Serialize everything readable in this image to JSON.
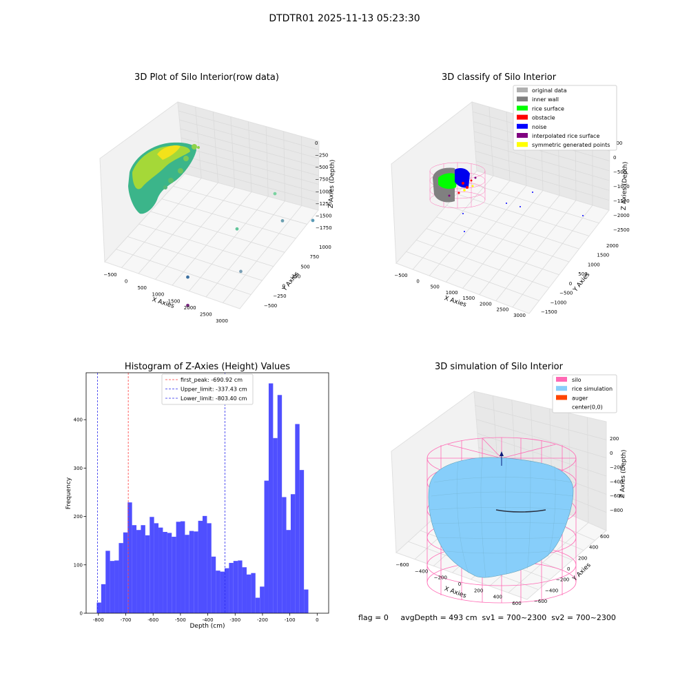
{
  "figure": {
    "suptitle": "DTDTR01 2025-11-13 05:23:30",
    "status_text": "flag = 0     avgDepth = 493 cm  sv1 = 700~2300  sv2 = 700~2300"
  },
  "colors": {
    "bar": "#4f4fff",
    "first_peak_line": "#ff3a3a",
    "limit_line": "#2a2aee",
    "silo": "#ff69b4",
    "rice_simulation": "#87cefa",
    "auger": "#ff4500",
    "original_data": "#b0b0b0",
    "inner_wall": "#808080",
    "rice_surface": "#00ff00",
    "obstacle": "#ff0000",
    "noise": "#0000ff",
    "interpolated_rice_surface": "#800080",
    "symmetric_generated_points": "#ffff00"
  },
  "chart_data": [
    {
      "type": "scatter",
      "title": "3D Plot of Silo Interior(row data)",
      "xlabel": "X Axies",
      "ylabel": "Y Axies",
      "zlabel": "Z Axies (Depth)",
      "xticks": [
        "−500",
        "0",
        "500",
        "1000",
        "1500",
        "2000",
        "2500",
        "3000"
      ],
      "yticks": [
        "−500",
        "−250",
        "0",
        "250",
        "500",
        "750",
        "1000"
      ],
      "zticks": [
        "0",
        "−250",
        "−500",
        "−750",
        "−1000",
        "−1250",
        "−1500",
        "−1750"
      ],
      "outliers": [
        {
          "x": 2200,
          "y": 600,
          "z": -600,
          "color": "#7ad3a0"
        },
        {
          "x": 1500,
          "y": 300,
          "z": -1150,
          "color": "#62c59a"
        },
        {
          "x": 2300,
          "y": 700,
          "z": -1200,
          "color": "#6b9fb0"
        },
        {
          "x": 2900,
          "y": 900,
          "z": -1250,
          "color": "#5a9ab5"
        },
        {
          "x": 800,
          "y": -300,
          "z": -1650,
          "color": "#3a6fa0"
        },
        {
          "x": 1800,
          "y": 100,
          "z": -1700,
          "color": "#7a9fb5"
        },
        {
          "x": 1000,
          "y": -500,
          "z": -1950,
          "color": "#7a2a80"
        }
      ]
    },
    {
      "type": "scatter",
      "title": "3D classify of Silo Interior",
      "xlabel": "X Axies",
      "ylabel": "Y Axies",
      "zlabel": "Z Axies (Depth)",
      "xticks": [
        "−500",
        "0",
        "500",
        "1000",
        "1500",
        "2000",
        "2500",
        "3000"
      ],
      "yticks": [
        "−1500",
        "−1000",
        "−500",
        "0",
        "500",
        "1000",
        "1500",
        "2000"
      ],
      "zticks": [
        "500",
        "0",
        "−500",
        "−1000",
        "−1500",
        "−2000",
        "−2500"
      ],
      "legend": [
        {
          "label": "original data",
          "color": "#b0b0b0"
        },
        {
          "label": "inner wall",
          "color": "#808080"
        },
        {
          "label": "rice surface",
          "color": "#00ff00"
        },
        {
          "label": "obstacle",
          "color": "#ff0000"
        },
        {
          "label": "noise",
          "color": "#0000ff"
        },
        {
          "label": "interpolated rice surface",
          "color": "#800080"
        },
        {
          "label": "symmetric generated points",
          "color": "#ffff00"
        }
      ],
      "legend_position": "top-right"
    },
    {
      "type": "bar",
      "title": "Histogram of Z-Axies (Height) Values",
      "xlabel": "Depth (cm)",
      "ylabel": "Frequency",
      "xlim": [
        -845,
        42
      ],
      "ylim": [
        0,
        497
      ],
      "xticks": [
        -800,
        -700,
        -600,
        -500,
        -400,
        -300,
        -200,
        -100,
        0
      ],
      "yticks": [
        0,
        100,
        200,
        300,
        400
      ],
      "bin_start": -806,
      "bin_width": 16.12,
      "values": [
        22,
        60,
        129,
        108,
        109,
        145,
        167,
        229,
        182,
        172,
        182,
        161,
        199,
        186,
        177,
        168,
        166,
        158,
        189,
        190,
        162,
        170,
        169,
        191,
        201,
        186,
        117,
        88,
        86,
        93,
        104,
        108,
        109,
        95,
        80,
        83,
        32,
        55,
        274,
        475,
        362,
        451,
        240,
        172,
        246,
        391,
        296,
        49
      ],
      "vlines": [
        {
          "name": "first_peak",
          "x": -690.92,
          "label": "first_peak: -690.92 cm",
          "color": "#ff3a3a"
        },
        {
          "name": "upper_limit",
          "x": -337.43,
          "label": "Upper_limit: -337.43 cm",
          "color": "#2a2aee"
        },
        {
          "name": "lower_limit",
          "x": -803.4,
          "label": "Lower_limit: -803.40 cm",
          "color": "#2a2aee"
        }
      ],
      "legend_position": "top-center"
    },
    {
      "type": "area",
      "title": "3D simulation of Silo Interior",
      "xlabel": "X Axies",
      "ylabel": "Y Axies",
      "zlabel": "Z Axies (Depth)",
      "xticks": [
        "−600",
        "−400",
        "−200",
        "0",
        "200",
        "400",
        "600"
      ],
      "yticks": [
        "−600",
        "−400",
        "−200",
        "0",
        "200",
        "400",
        "600"
      ],
      "zticks": [
        "200",
        "0",
        "−200",
        "−400",
        "−600",
        "−800"
      ],
      "legend": [
        {
          "label": "silo",
          "color": "#ff69b4"
        },
        {
          "label": "rice simulation",
          "color": "#87cefa"
        },
        {
          "label": "auger",
          "color": "#ff4500"
        },
        {
          "label": "center(0,0)",
          "color": "#ffffff"
        }
      ],
      "legend_position": "top-right"
    }
  ]
}
